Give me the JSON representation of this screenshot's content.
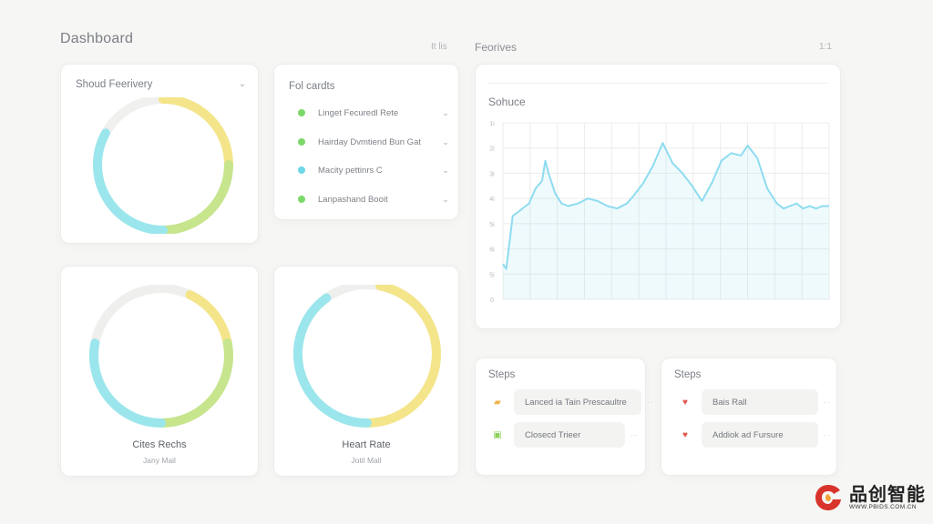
{
  "header": {
    "title": "Dashboard",
    "meta": "It lis"
  },
  "right_header": {
    "title": "Feorives",
    "meta": "1:1"
  },
  "card_feerivery": {
    "title": "Shoud Feerivery",
    "progress": [
      {
        "color": "#f4e58a",
        "from": 0.0,
        "to": 0.25
      },
      {
        "color": "#c6e58c",
        "from": 0.25,
        "to": 0.5
      },
      {
        "color": "#9be6ec",
        "from": 0.5,
        "to": 0.83
      }
    ]
  },
  "card_cards": {
    "title": "Fol cardts",
    "items": [
      {
        "label": "Linget Fecuredl Rete",
        "color": "#7dd86a"
      },
      {
        "label": "Hairday Dvmtiend Bun Gat",
        "color": "#7dd86a"
      },
      {
        "label": "Macity pettinrs C",
        "color": "#6fd6e8"
      },
      {
        "label": "Lanpashand Booit",
        "color": "#7dd86a"
      }
    ]
  },
  "card_cites": {
    "name": "Cites Rechs",
    "sub": "Jany Mail",
    "progress": [
      {
        "color": "#f4e58a",
        "from": 0.07,
        "to": 0.22
      },
      {
        "color": "#c6e58c",
        "from": 0.22,
        "to": 0.5
      },
      {
        "color": "#9be6ec",
        "from": 0.5,
        "to": 0.78
      }
    ]
  },
  "card_heart": {
    "name": "Heart Rate",
    "sub": "Jotil Mall",
    "progress": [
      {
        "color": "#f4e58a",
        "from": 0.03,
        "to": 0.5
      },
      {
        "color": "#9be6ec",
        "from": 0.5,
        "to": 0.9
      }
    ]
  },
  "chart_data": {
    "type": "area",
    "title": "Sohuce",
    "yticks": [
      "0",
      "5i",
      "6i",
      "5i",
      "4i",
      "3i",
      "2i",
      "1i"
    ],
    "ylim": [
      0,
      70
    ],
    "xlim": [
      0,
      100
    ],
    "grid": true,
    "series": [
      {
        "color": "#8edcf0",
        "x": [
          0,
          1,
          3,
          5,
          8,
          10,
          12,
          13,
          14,
          16,
          18,
          20,
          23,
          26,
          29,
          32,
          35,
          38,
          40,
          43,
          46,
          49,
          52,
          55,
          58,
          61,
          64,
          67,
          70,
          73,
          75,
          78,
          81,
          84,
          86,
          88,
          90,
          92,
          94,
          96,
          98,
          100
        ],
        "y": [
          14,
          12,
          33,
          35,
          38,
          44,
          47,
          55,
          50,
          42,
          38,
          37,
          38,
          40,
          39,
          37,
          36,
          38,
          41,
          46,
          53,
          62,
          54,
          50,
          45,
          39,
          46,
          55,
          58,
          57,
          61,
          56,
          44,
          38,
          36,
          37,
          38,
          36,
          37,
          36,
          37,
          37
        ]
      }
    ]
  },
  "steps_left": {
    "title": "Steps",
    "items": [
      {
        "label": "Lanced ia Tain Prescaultre",
        "icon": "note-icon",
        "color": "#f0b34a",
        "glyph": "▰"
      },
      {
        "label": "Closecd Trieer",
        "icon": "check-icon",
        "color": "#8fd05a",
        "glyph": "▣"
      }
    ]
  },
  "steps_right": {
    "title": "Steps",
    "items": [
      {
        "label": "Bais Rall",
        "icon": "heart-icon",
        "color": "#e0574e",
        "glyph": "♥"
      },
      {
        "label": "Addiok ad Fursure",
        "icon": "heart-icon",
        "color": "#e0574e",
        "glyph": "♥"
      }
    ]
  },
  "watermark": {
    "name": "品创智能",
    "url": "WWW.PBIDS.COM.CN"
  }
}
